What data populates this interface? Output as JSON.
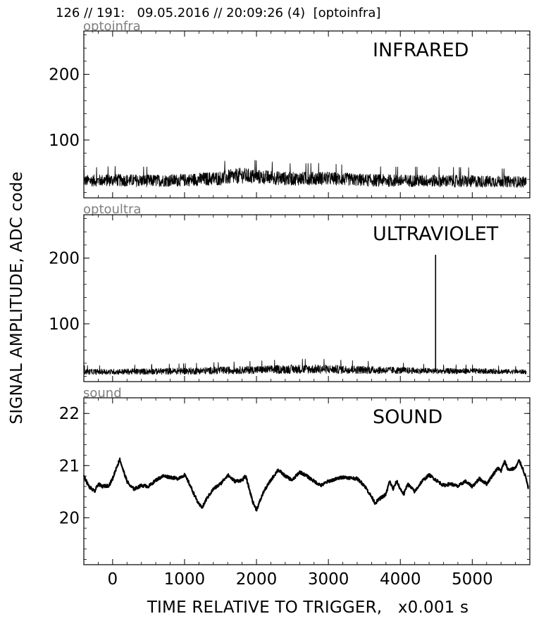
{
  "header": "126 // 191:   09.05.2016 // 20:09:26 (4)  [optoinfra]",
  "ylabel": "SIGNAL AMPLITUDE,  ADC code",
  "xlabel": "TIME RELATIVE TO TRIGGER,   x0.001 s",
  "chart_data": [
    {
      "type": "line",
      "tag": "optoinfra",
      "title": "INFRARED",
      "xlim": [
        -400,
        5800
      ],
      "ylim": [
        12,
        266
      ],
      "yticks": [
        100,
        200
      ],
      "ytick_labels": [
        "100",
        "200"
      ],
      "series": [
        {
          "x": [
            -400,
            0,
            500,
            1000,
            1500,
            1800,
            2000,
            2500,
            2900,
            3500,
            4000,
            4500,
            5000,
            5500,
            5750
          ],
          "y": [
            38,
            39,
            38,
            39,
            42,
            46,
            44,
            41,
            42,
            39,
            38,
            38,
            37,
            37,
            36
          ],
          "noise": [
            10,
            11,
            11,
            11,
            13,
            14,
            13,
            12,
            12,
            11,
            11,
            11,
            11,
            10,
            10
          ]
        }
      ]
    },
    {
      "type": "line",
      "tag": "optoultra",
      "title": "ULTRAVIOLET",
      "xlim": [
        -400,
        5800
      ],
      "ylim": [
        12,
        266
      ],
      "yticks": [
        100,
        200
      ],
      "ytick_labels": [
        "100",
        "200"
      ],
      "series": [
        {
          "x": [
            -400,
            0,
            1000,
            2000,
            2500,
            2900,
            3500,
            4000,
            4500,
            5000,
            5750
          ],
          "y": [
            27,
            27,
            28,
            30,
            31,
            31,
            30,
            29,
            28,
            28,
            27
          ],
          "noise": [
            5,
            5,
            6,
            7,
            8,
            8,
            7,
            6,
            5,
            5,
            4
          ],
          "spike": {
            "x": 4490,
            "y": 205
          }
        }
      ]
    },
    {
      "type": "line",
      "tag": "sound",
      "title": "SOUND",
      "xlim": [
        -400,
        5800
      ],
      "ylim": [
        19.1,
        22.3
      ],
      "yticks": [
        20,
        21,
        22
      ],
      "ytick_labels": [
        "20",
        "21",
        "22"
      ],
      "xticks": [
        0,
        1000,
        2000,
        3000,
        4000,
        5000
      ],
      "xtick_labels": [
        "0",
        "1000",
        "2000",
        "3000",
        "4000",
        "5000"
      ],
      "series": [
        {
          "x": [
            -400,
            -330,
            -250,
            -200,
            -150,
            -50,
            0,
            50,
            100,
            150,
            200,
            250,
            300,
            400,
            500,
            600,
            700,
            800,
            900,
            1000,
            1050,
            1100,
            1150,
            1200,
            1250,
            1300,
            1400,
            1500,
            1600,
            1700,
            1800,
            1850,
            1900,
            1950,
            2000,
            2100,
            2200,
            2300,
            2400,
            2500,
            2600,
            2700,
            2800,
            2900,
            3000,
            3200,
            3400,
            3500,
            3600,
            3650,
            3700,
            3800,
            3850,
            3900,
            3950,
            4000,
            4050,
            4100,
            4200,
            4300,
            4400,
            4500,
            4600,
            4700,
            4800,
            4900,
            5000,
            5100,
            5200,
            5300,
            5350,
            5400,
            5450,
            5500,
            5600,
            5650,
            5700,
            5750,
            5780
          ],
          "y": [
            20.8,
            20.6,
            20.5,
            20.65,
            20.6,
            20.62,
            20.75,
            20.95,
            21.12,
            20.9,
            20.7,
            20.6,
            20.55,
            20.62,
            20.6,
            20.72,
            20.8,
            20.78,
            20.75,
            20.82,
            20.7,
            20.55,
            20.4,
            20.25,
            20.2,
            20.35,
            20.55,
            20.65,
            20.82,
            20.7,
            20.72,
            20.8,
            20.55,
            20.3,
            20.15,
            20.5,
            20.72,
            20.92,
            20.8,
            20.72,
            20.88,
            20.8,
            20.7,
            20.62,
            20.7,
            20.78,
            20.75,
            20.62,
            20.4,
            20.28,
            20.35,
            20.45,
            20.7,
            20.55,
            20.7,
            20.55,
            20.45,
            20.65,
            20.5,
            20.7,
            20.82,
            20.72,
            20.62,
            20.65,
            20.6,
            20.7,
            20.6,
            20.75,
            20.65,
            20.85,
            20.95,
            20.9,
            21.08,
            20.92,
            20.95,
            21.1,
            20.95,
            20.75,
            20.55
          ]
        }
      ]
    }
  ]
}
